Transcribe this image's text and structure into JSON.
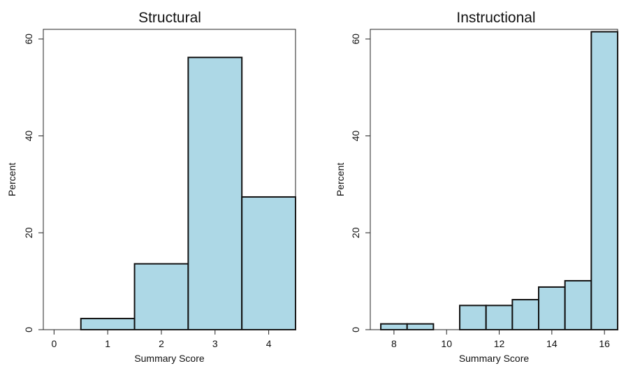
{
  "chart_data": [
    {
      "type": "bar",
      "title": "Structural",
      "xlabel": "Summary Score",
      "ylabel": "Percent",
      "xlim": [
        -0.2,
        4.5
      ],
      "ylim": [
        0,
        62
      ],
      "x_ticks": [
        "0",
        "1",
        "2",
        "3",
        "4"
      ],
      "y_ticks": [
        "0",
        "20",
        "40",
        "60"
      ],
      "categories": [
        1,
        2,
        3,
        4
      ],
      "values": [
        2.3,
        13.6,
        56.2,
        27.4
      ],
      "bar_width": 1,
      "color": "#add8e6",
      "grid": false
    },
    {
      "type": "bar",
      "title": "Instructional",
      "xlabel": "Summary Score",
      "ylabel": "Percent",
      "xlim": [
        7.1,
        16.5
      ],
      "ylim": [
        0,
        62
      ],
      "x_ticks": [
        "8",
        "10",
        "12",
        "14",
        "16"
      ],
      "y_ticks": [
        "0",
        "20",
        "40",
        "60"
      ],
      "categories": [
        8,
        9,
        11,
        12,
        13,
        14,
        15,
        16
      ],
      "values": [
        1.2,
        1.2,
        5.0,
        5.0,
        6.2,
        8.8,
        10.1,
        61.5
      ],
      "bar_width": 1,
      "color": "#add8e6",
      "grid": false
    }
  ]
}
